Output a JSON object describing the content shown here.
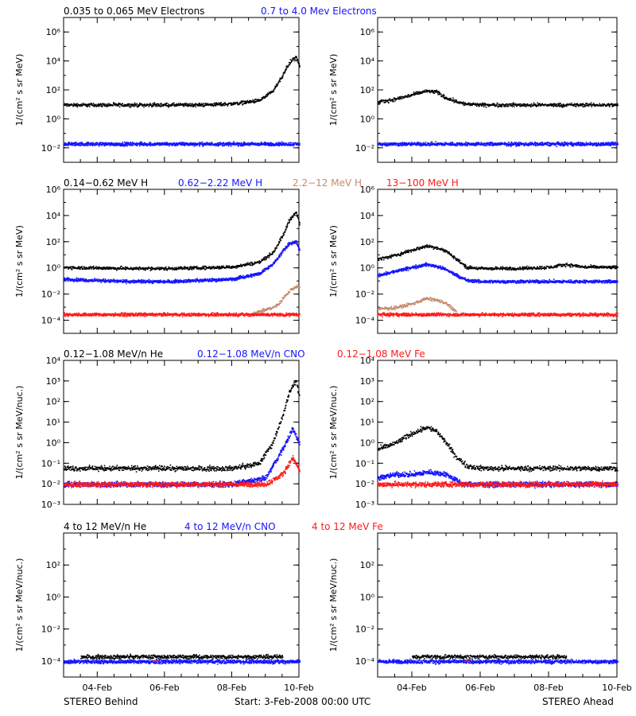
{
  "colors": {
    "black": "#000000",
    "blue": "#1515ff",
    "tan": "#c58a6a",
    "red": "#ff1a1a"
  },
  "footer": {
    "left": "STEREO Behind",
    "center": "Start:  3-Feb-2008 00:00 UTC",
    "right": "STEREO Ahead"
  },
  "x_axis": {
    "range_days": [
      0,
      7
    ],
    "ticks": [
      {
        "label": "04-Feb",
        "value": 1
      },
      {
        "label": "06-Feb",
        "value": 3
      },
      {
        "label": "08-Feb",
        "value": 5
      },
      {
        "label": "10-Feb",
        "value": 7
      }
    ]
  },
  "rows": [
    {
      "titles": [
        {
          "text": "0.035 to 0.065 MeV Electrons",
          "color": "black"
        },
        {
          "text": "0.7 to 4.0 Mev Electrons",
          "color": "blue"
        }
      ],
      "ylabel": "1/(cm² s sr MeV)",
      "yticks": [
        {
          "label": "10⁶",
          "exp": 6
        },
        {
          "label": "10⁴",
          "exp": 4
        },
        {
          "label": "10²",
          "exp": 2
        },
        {
          "label": "10⁰",
          "exp": 0
        },
        {
          "label": "10⁻²",
          "exp": -2
        }
      ]
    },
    {
      "titles": [
        {
          "text": "0.14−0.62 MeV H",
          "color": "black"
        },
        {
          "text": "0.62−2.22 MeV H",
          "color": "blue"
        },
        {
          "text": "2.2−12 MeV H",
          "color": "tan"
        },
        {
          "text": "13−100 MeV H",
          "color": "red"
        }
      ],
      "ylabel": "1/(cm² s sr MeV)",
      "yticks": [
        {
          "label": "10⁶",
          "exp": 6
        },
        {
          "label": "10⁴",
          "exp": 4
        },
        {
          "label": "10²",
          "exp": 2
        },
        {
          "label": "10⁰",
          "exp": 0
        },
        {
          "label": "10⁻²",
          "exp": -2
        },
        {
          "label": "10⁻⁴",
          "exp": -4
        }
      ]
    },
    {
      "titles": [
        {
          "text": "0.12−1.08 MeV/n He",
          "color": "black"
        },
        {
          "text": "0.12−1.08 MeV/n CNO",
          "color": "blue"
        },
        {
          "text": "0.12−1.08 MeV Fe",
          "color": "red"
        }
      ],
      "ylabel": "1/(cm² s sr MeV/nuc.)",
      "yticks": [
        {
          "label": "10⁴",
          "exp": 4
        },
        {
          "label": "10³",
          "exp": 3
        },
        {
          "label": "10²",
          "exp": 2
        },
        {
          "label": "10¹",
          "exp": 1
        },
        {
          "label": "10⁰",
          "exp": 0
        },
        {
          "label": "10⁻¹",
          "exp": -1
        },
        {
          "label": "10⁻²",
          "exp": -2
        },
        {
          "label": "10⁻³",
          "exp": -3
        }
      ]
    },
    {
      "titles": [
        {
          "text": "4 to 12 MeV/n He",
          "color": "black"
        },
        {
          "text": "4 to 12 MeV/n CNO",
          "color": "blue"
        },
        {
          "text": "4 to 12 MeV Fe",
          "color": "red"
        }
      ],
      "ylabel": "1/(cm² s sr MeV/nuc.)",
      "yticks": [
        {
          "label": "10²",
          "exp": 2
        },
        {
          "label": "10⁰",
          "exp": 0
        },
        {
          "label": "10⁻²",
          "exp": -2
        },
        {
          "label": "10⁻⁴",
          "exp": -4
        }
      ]
    }
  ],
  "chart_data": [
    {
      "type": "scatter",
      "panel": "Electrons - STEREO Behind",
      "ylog": true,
      "ylim_exp": [
        -3,
        7
      ],
      "series": [
        {
          "name": "0.035 to 0.065 MeV Electrons",
          "color": "black",
          "x": [
            0,
            1,
            2,
            3,
            4,
            5,
            5.8,
            6.2,
            6.5,
            6.7,
            6.9,
            7
          ],
          "y": [
            10,
            10,
            10,
            10,
            10,
            12,
            20,
            80,
            1000,
            8000,
            20000,
            5000
          ]
        },
        {
          "name": "0.7 to 4.0 Mev Electrons",
          "color": "blue",
          "x": [
            0,
            1,
            2,
            3,
            4,
            5,
            6,
            7
          ],
          "y": [
            0.02,
            0.02,
            0.02,
            0.02,
            0.02,
            0.02,
            0.02,
            0.02
          ]
        }
      ]
    },
    {
      "type": "scatter",
      "panel": "Electrons - STEREO Ahead",
      "ylog": true,
      "ylim_exp": [
        -3,
        7
      ],
      "series": [
        {
          "name": "0.035 to 0.065 MeV Electrons",
          "color": "black",
          "x": [
            0,
            0.5,
            1,
            1.4,
            1.7,
            2.0,
            2.5,
            3,
            4,
            5,
            6,
            7
          ],
          "y": [
            15,
            25,
            50,
            90,
            80,
            30,
            12,
            10,
            10,
            10,
            10,
            10
          ]
        },
        {
          "name": "0.7 to 4.0 Mev Electrons",
          "color": "blue",
          "x": [
            0,
            1,
            2,
            3,
            4,
            5,
            6,
            7
          ],
          "y": [
            0.02,
            0.02,
            0.02,
            0.02,
            0.02,
            0.02,
            0.02,
            0.02
          ]
        }
      ]
    },
    {
      "type": "scatter",
      "panel": "Protons - STEREO Behind",
      "ylog": true,
      "ylim_exp": [
        -5,
        6
      ],
      "series": [
        {
          "name": "0.14−0.62 MeV H",
          "color": "black",
          "x": [
            0,
            1,
            2,
            3,
            4,
            5,
            5.8,
            6.2,
            6.5,
            6.7,
            6.9,
            7
          ],
          "y": [
            1.2,
            1.1,
            1,
            1,
            1.1,
            1.3,
            3,
            15,
            300,
            5000,
            20000,
            3000
          ]
        },
        {
          "name": "0.62−2.22 MeV H",
          "color": "blue",
          "x": [
            0,
            1,
            2,
            3,
            4,
            5,
            5.8,
            6.2,
            6.5,
            6.7,
            6.9,
            7
          ],
          "y": [
            0.15,
            0.12,
            0.1,
            0.1,
            0.12,
            0.15,
            0.4,
            2,
            20,
            80,
            100,
            30
          ]
        },
        {
          "name": "2.2−12 MeV H",
          "color": "tan",
          "x": [
            5.5,
            5.9,
            6.2,
            6.4,
            6.6,
            6.8,
            7
          ],
          "y": [
            0.0003,
            0.0006,
            0.001,
            0.002,
            0.01,
            0.03,
            0.05
          ]
        },
        {
          "name": "13−100 MeV H",
          "color": "red",
          "x": [
            0,
            1,
            2,
            3,
            4,
            5,
            6,
            7
          ],
          "y": [
            0.0003,
            0.0003,
            0.0003,
            0.0003,
            0.0003,
            0.0003,
            0.0003,
            0.0003
          ]
        }
      ]
    },
    {
      "type": "scatter",
      "panel": "Protons - STEREO Ahead",
      "ylog": true,
      "ylim_exp": [
        -5,
        6
      ],
      "series": [
        {
          "name": "0.14−0.62 MeV H",
          "color": "black",
          "x": [
            0,
            0.5,
            1,
            1.4,
            1.7,
            2.0,
            2.3,
            2.6,
            3,
            4,
            5,
            5.5,
            6,
            7
          ],
          "y": [
            5,
            10,
            25,
            50,
            40,
            20,
            5,
            1.2,
            1,
            1,
            1.2,
            2,
            1.3,
            1.2
          ]
        },
        {
          "name": "0.62−2.22 MeV H",
          "color": "blue",
          "x": [
            0,
            0.5,
            1,
            1.4,
            1.7,
            2.0,
            2.3,
            2.6,
            3,
            4,
            5,
            6,
            7
          ],
          "y": [
            0.3,
            0.6,
            1.2,
            2,
            1.5,
            0.8,
            0.3,
            0.12,
            0.1,
            0.1,
            0.1,
            0.1,
            0.1
          ]
        },
        {
          "name": "2.2−12 MeV H",
          "color": "tan",
          "x": [
            0,
            0.5,
            1,
            1.4,
            1.7,
            2.0,
            2.3
          ],
          "y": [
            0.0008,
            0.001,
            0.002,
            0.005,
            0.004,
            0.002,
            0.0005
          ]
        },
        {
          "name": "13−100 MeV H",
          "color": "red",
          "x": [
            0,
            1,
            2,
            3,
            4,
            5,
            6,
            7
          ],
          "y": [
            0.0003,
            0.0003,
            0.0003,
            0.0003,
            0.0003,
            0.0003,
            0.0003,
            0.0003
          ]
        }
      ]
    },
    {
      "type": "scatter",
      "panel": "Heavy ions low energy - STEREO Behind",
      "ylog": true,
      "ylim_exp": [
        -3,
        4
      ],
      "series": [
        {
          "name": "0.12−1.08 MeV/n He",
          "color": "black",
          "x": [
            0,
            1,
            2,
            3,
            4,
            5,
            5.8,
            6.2,
            6.5,
            6.7,
            6.9,
            7
          ],
          "y": [
            0.06,
            0.06,
            0.06,
            0.06,
            0.06,
            0.06,
            0.1,
            1,
            20,
            300,
            1000,
            200
          ]
        },
        {
          "name": "0.12−1.08 MeV/n CNO",
          "color": "blue",
          "x": [
            0,
            1,
            2,
            3,
            4,
            5,
            6,
            6.5,
            6.8,
            7
          ],
          "y": [
            0.01,
            0.01,
            0.01,
            0.01,
            0.01,
            0.01,
            0.02,
            0.5,
            5,
            1
          ]
        },
        {
          "name": "0.12−1.08 MeV Fe",
          "color": "red",
          "x": [
            0,
            1,
            2,
            3,
            4,
            5,
            6,
            6.5,
            6.8,
            7
          ],
          "y": [
            0.01,
            0.01,
            0.01,
            0.01,
            0.01,
            0.01,
            0.01,
            0.03,
            0.2,
            0.05
          ]
        }
      ]
    },
    {
      "type": "scatter",
      "panel": "Heavy ions low energy - STEREO Ahead",
      "ylog": true,
      "ylim_exp": [
        -3,
        4
      ],
      "series": [
        {
          "name": "0.12−1.08 MeV/n He",
          "color": "black",
          "x": [
            0,
            0.5,
            1,
            1.4,
            1.7,
            2.0,
            2.3,
            2.6,
            3,
            4,
            5,
            6,
            7
          ],
          "y": [
            0.5,
            1,
            3,
            6,
            4,
            1,
            0.2,
            0.08,
            0.06,
            0.06,
            0.06,
            0.06,
            0.06
          ]
        },
        {
          "name": "0.12−1.08 MeV/n CNO",
          "color": "blue",
          "x": [
            0,
            0.5,
            1,
            1.5,
            2,
            2.5,
            3,
            4,
            5,
            6,
            7
          ],
          "y": [
            0.02,
            0.03,
            0.03,
            0.04,
            0.03,
            0.01,
            0.01,
            0.01,
            0.01,
            0.01,
            0.01
          ]
        },
        {
          "name": "0.12−1.08 MeV Fe",
          "color": "red",
          "x": [
            0,
            1,
            2,
            3,
            4,
            5,
            6,
            7
          ],
          "y": [
            0.01,
            0.01,
            0.01,
            0.01,
            0.01,
            0.01,
            0.01,
            0.01
          ]
        }
      ]
    },
    {
      "type": "scatter",
      "panel": "Heavy ions high energy - STEREO Behind",
      "ylog": true,
      "ylim_exp": [
        -5,
        4
      ],
      "series": [
        {
          "name": "4 to 12 MeV/n He",
          "color": "black",
          "x": [
            0.5,
            1.5,
            2.5,
            3.5,
            4.5,
            5.5,
            6.5
          ],
          "y": [
            0.0002,
            0.0002,
            0.0002,
            0.0002,
            0.0002,
            0.0002,
            0.0002
          ]
        },
        {
          "name": "4 to 12 MeV/n CNO",
          "color": "blue",
          "x": [
            0,
            1,
            2,
            3,
            4,
            5,
            6,
            7
          ],
          "y": [
            0.0001,
            0.0001,
            0.0001,
            0.0001,
            0.0001,
            0.0001,
            0.0001,
            0.0001
          ]
        },
        {
          "name": "4 to 12 MeV Fe",
          "color": "red",
          "x": [
            2.7
          ],
          "y": [
            0.0001
          ]
        }
      ]
    },
    {
      "type": "scatter",
      "panel": "Heavy ions high energy - STEREO Ahead",
      "ylog": true,
      "ylim_exp": [
        -5,
        4
      ],
      "series": [
        {
          "name": "4 to 12 MeV/n He",
          "color": "black",
          "x": [
            1.0,
            2.0,
            4.5,
            5.5
          ],
          "y": [
            0.0002,
            0.0002,
            0.0002,
            0.0002
          ]
        },
        {
          "name": "4 to 12 MeV/n CNO",
          "color": "blue",
          "x": [
            0,
            1,
            2,
            3,
            4,
            5,
            6,
            7
          ],
          "y": [
            0.0001,
            0.0001,
            0.0001,
            0.0001,
            0.0001,
            0.0001,
            0.0001,
            0.0001
          ]
        },
        {
          "name": "4 to 12 MeV Fe",
          "color": "red",
          "x": [
            2.6
          ],
          "y": [
            0.0001
          ]
        }
      ]
    }
  ]
}
